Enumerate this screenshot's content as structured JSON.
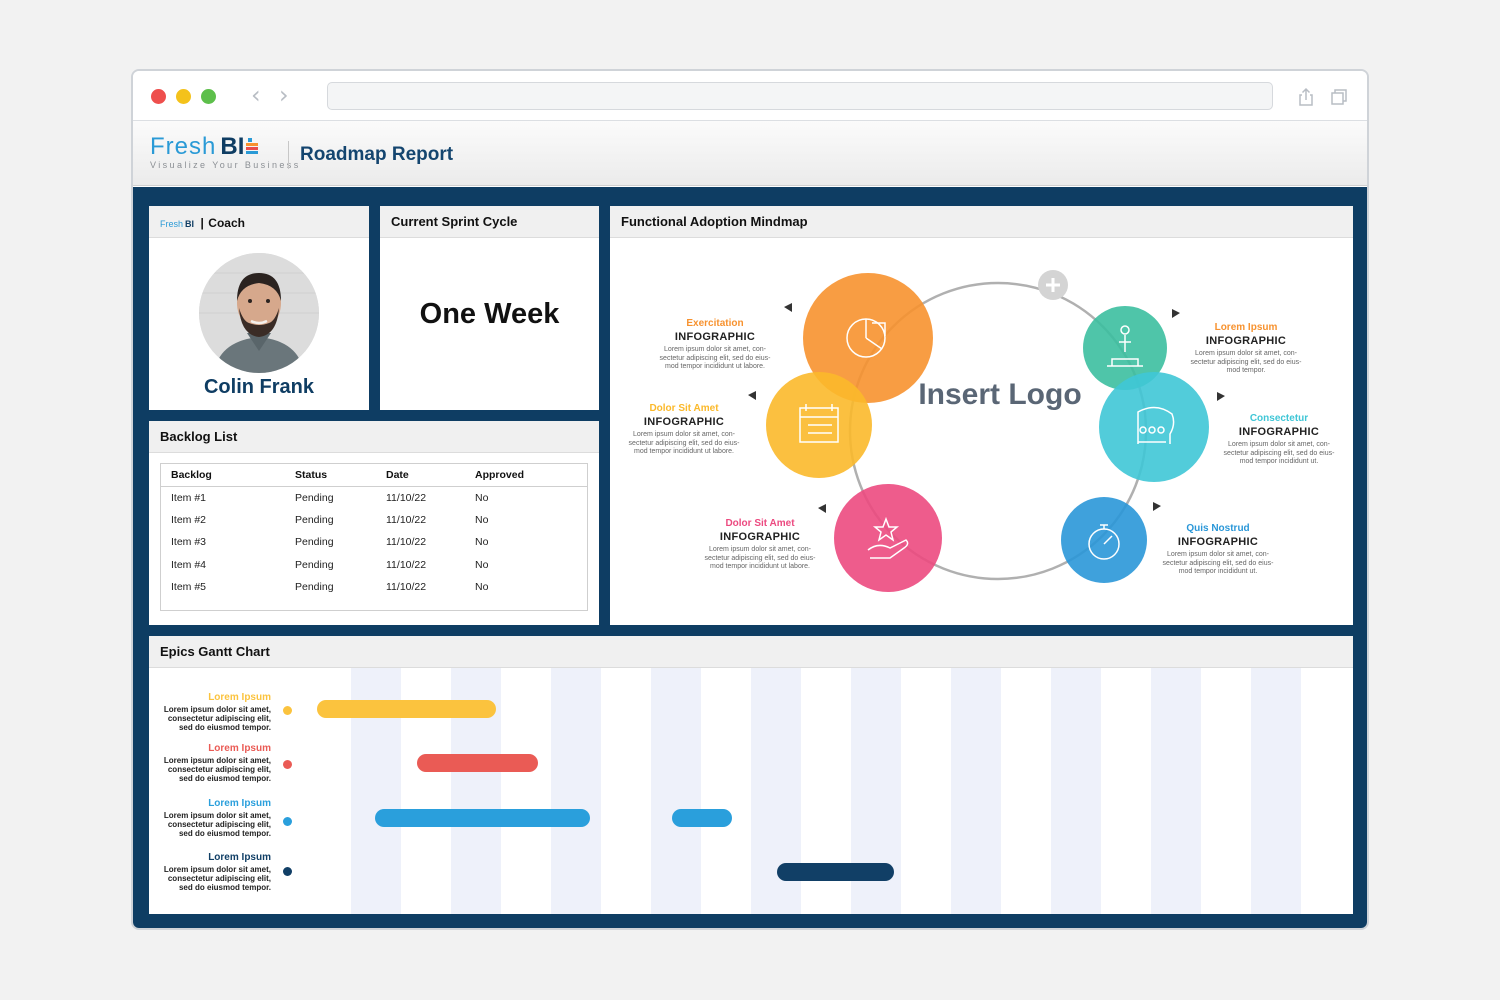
{
  "app": {
    "brand_fresh": "Fresh",
    "brand_bi": "BI",
    "tagline": "Visualize Your Business",
    "report_title": "Roadmap Report"
  },
  "coach": {
    "brand_fresh": "Fresh",
    "brand_bi": "BI",
    "title": "Coach",
    "name": "Colin Frank"
  },
  "sprint": {
    "title": "Current Sprint Cycle",
    "value": "One Week"
  },
  "backlog": {
    "title": "Backlog List",
    "columns": [
      "Backlog",
      "Status",
      "Date",
      "Approved"
    ],
    "rows": [
      [
        "Item #1",
        "Pending",
        "11/10/22",
        "No"
      ],
      [
        "Item #2",
        "Pending",
        "11/10/22",
        "No"
      ],
      [
        "Item #3",
        "Pending",
        "11/10/22",
        "No"
      ],
      [
        "Item #4",
        "Pending",
        "11/10/22",
        "No"
      ],
      [
        "Item #5",
        "Pending",
        "11/10/22",
        "No"
      ]
    ]
  },
  "mindmap": {
    "title": "Functional Adoption Mindmap",
    "center": "Insert Logo",
    "items": [
      {
        "title": "Exercitation",
        "sub": "INFOGRAPHIC",
        "body": "Lorem ipsum dolor sit amet, con-\nsectetur adipiscing elit, sed do eius-\nmod tempor incididunt ut labore.",
        "color": "#f7922f",
        "icon": "pie-chart-icon"
      },
      {
        "title": "Dolor Sit Amet",
        "sub": "INFOGRAPHIC",
        "body": "Lorem ipsum dolor sit amet, con-\nsectetur adipiscing elit, sed do eius-\nmod tempor incididunt ut labore.",
        "color": "#fbb92b",
        "icon": "calendar-icon"
      },
      {
        "title": "Dolor Sit Amet",
        "sub": "INFOGRAPHIC",
        "body": "Lorem ipsum dolor sit amet, con-\nsectetur adipiscing elit, sed do eius-\nmod tempor incididunt ut labore.",
        "color": "#ec4a80",
        "icon": "star-hand-icon"
      },
      {
        "title": "Lorem Ipsum",
        "sub": "INFOGRAPHIC",
        "body": "Lorem ipsum dolor sit amet, con-\nsectetur adipiscing elit, sed do eius-\nmod tempor.",
        "color": "#3cbfa0",
        "icon": "podium-icon"
      },
      {
        "title": "Consectetur",
        "sub": "INFOGRAPHIC",
        "body": "Lorem ipsum dolor sit amet, con-\nsectetur adipiscing elit, sed do eius-\nmod tempor incididunt ut.",
        "color": "#3fc6d6",
        "icon": "head-team-icon"
      },
      {
        "title": "Quis Nostrud",
        "sub": "INFOGRAPHIC",
        "body": "Lorem ipsum dolor sit amet, con-\nsectetur adipiscing elit, sed do eius-\nmod tempor incididunt ut.",
        "color": "#2a97d8",
        "icon": "stopwatch-icon"
      }
    ]
  },
  "gantt": {
    "title": "Epics Gantt Chart",
    "rows": [
      {
        "title": "Lorem Ipsum",
        "body": "Lorem ipsum dolor sit amet,\nconsectetur adipiscing elit,\nsed do eiusmod tempor.",
        "color": "#fbc33e"
      },
      {
        "title": "Lorem Ipsum",
        "body": "Lorem ipsum dolor sit amet,\nconsectetur adipiscing elit,\nsed do eiusmod tempor.",
        "color": "#ea5b55"
      },
      {
        "title": "Lorem Ipsum",
        "body": "Lorem ipsum dolor sit amet,\nconsectetur adipiscing elit,\nsed do eiusmod tempor.",
        "color": "#2a9fdc"
      },
      {
        "title": "Lorem Ipsum",
        "body": "Lorem ipsum dolor sit amet,\nconsectetur adipiscing elit,\nsed do eiusmod tempor.",
        "color": "#113f66"
      }
    ]
  }
}
